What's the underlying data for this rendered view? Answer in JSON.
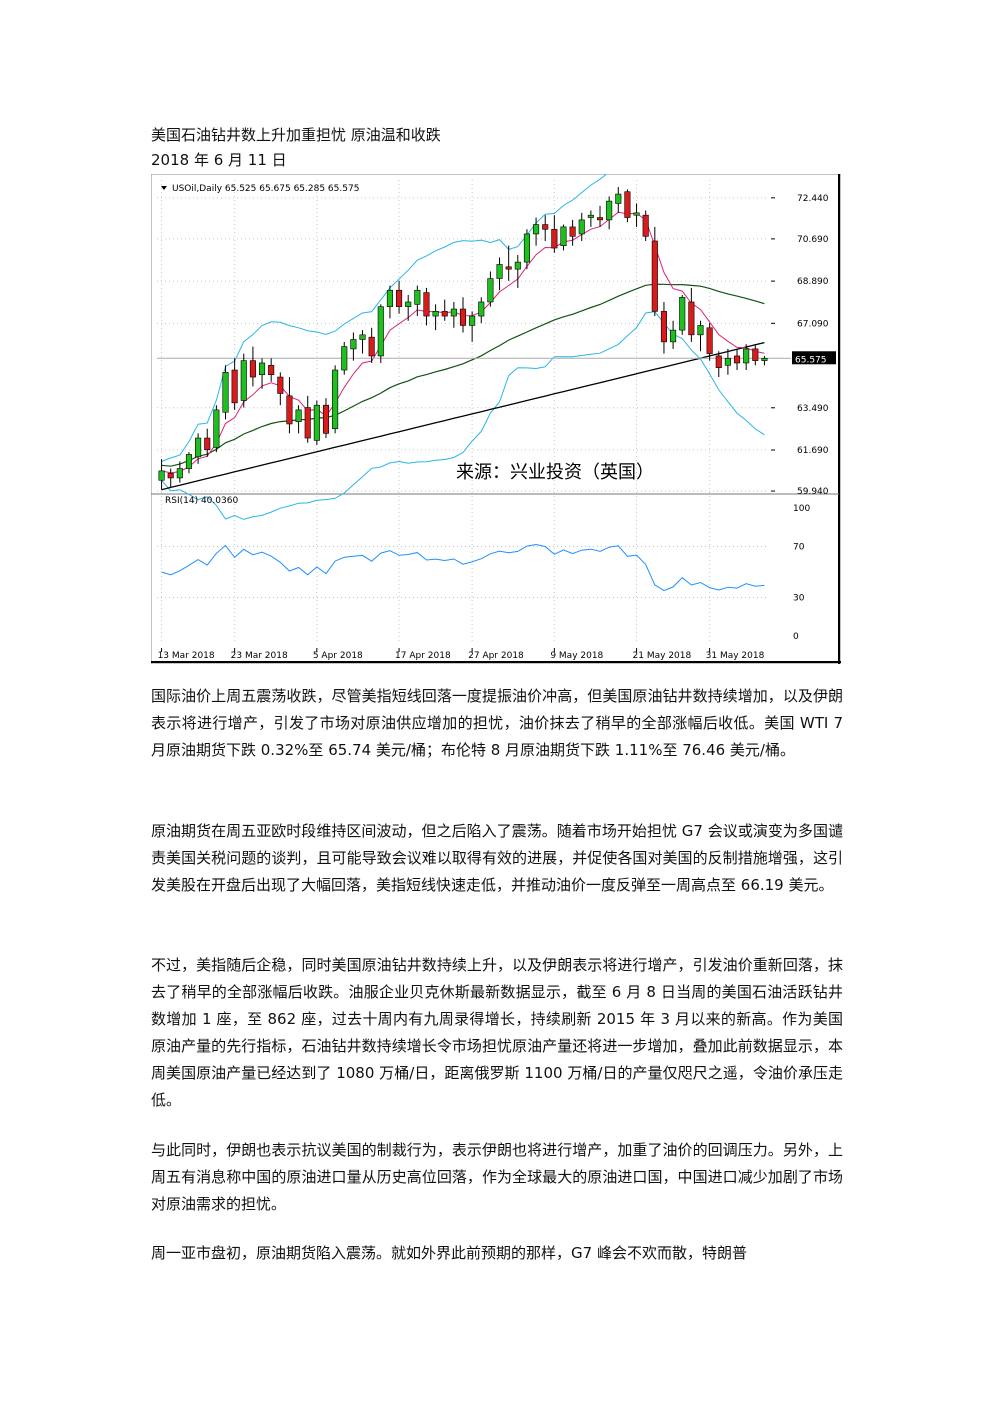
{
  "document": {
    "title": "美国石油钻井数上升加重担忧  原油温和收跌",
    "date": "2018 年 6 月 11 日"
  },
  "chart_data": {
    "type": "candlestick",
    "header": "USOil,Daily  65.525 65.675 65.285 65.575",
    "current_price_label": "65.575",
    "price_ticks": [
      "72.440",
      "70.690",
      "68.890",
      "67.090",
      "63.490",
      "61.690",
      "59.940"
    ],
    "price_tick_values": [
      72.44,
      70.69,
      68.89,
      67.09,
      63.49,
      61.69,
      59.94
    ],
    "price_range": [
      59.9,
      73.2
    ],
    "source_label": "来源：兴业投资（英国）",
    "rsi_label": "RSI(14) 40.0360",
    "rsi_ticks": [
      "100",
      "70",
      "30",
      "0"
    ],
    "rsi_tick_values": [
      100,
      70,
      30,
      0
    ],
    "x_labels": [
      "13 Mar 2018",
      "23 Mar 2018",
      "5 Apr 2018",
      "17 Apr 2018",
      "27 Apr 2018",
      "9 May 2018",
      "21 May 2018",
      "31 May 2018"
    ],
    "x_label_index": [
      0,
      8,
      17,
      26,
      34,
      43,
      52,
      60
    ],
    "candles": [
      [
        60.4,
        61.3,
        60.0,
        60.8
      ],
      [
        60.7,
        60.9,
        60.1,
        60.5
      ],
      [
        60.5,
        61.2,
        60.3,
        60.9
      ],
      [
        60.9,
        61.6,
        60.7,
        61.5
      ],
      [
        61.4,
        62.4,
        61.1,
        62.2
      ],
      [
        62.2,
        62.6,
        61.4,
        61.7
      ],
      [
        61.8,
        63.6,
        61.6,
        63.4
      ],
      [
        63.3,
        65.3,
        63.0,
        65.0
      ],
      [
        65.1,
        65.6,
        63.4,
        63.7
      ],
      [
        63.8,
        65.8,
        63.5,
        65.5
      ],
      [
        65.5,
        66.1,
        64.4,
        64.8
      ],
      [
        64.9,
        65.6,
        64.3,
        65.4
      ],
      [
        65.3,
        65.6,
        64.6,
        64.9
      ],
      [
        64.8,
        65.0,
        63.6,
        64.1
      ],
      [
        64.0,
        64.8,
        62.4,
        62.8
      ],
      [
        62.9,
        63.6,
        62.4,
        63.4
      ],
      [
        63.5,
        64.0,
        62.0,
        62.2
      ],
      [
        62.1,
        63.8,
        61.9,
        63.6
      ],
      [
        63.6,
        63.9,
        62.2,
        62.4
      ],
      [
        62.6,
        65.3,
        62.4,
        65.1
      ],
      [
        65.1,
        66.3,
        64.9,
        66.1
      ],
      [
        66.0,
        66.7,
        65.5,
        66.4
      ],
      [
        66.4,
        66.8,
        65.8,
        66.6
      ],
      [
        66.5,
        66.9,
        65.4,
        65.7
      ],
      [
        65.7,
        67.9,
        65.4,
        67.8
      ],
      [
        67.8,
        68.7,
        67.3,
        68.5
      ],
      [
        68.5,
        68.9,
        67.5,
        67.8
      ],
      [
        67.8,
        68.3,
        67.2,
        68.0
      ],
      [
        67.9,
        68.7,
        67.4,
        68.5
      ],
      [
        68.4,
        68.6,
        67.0,
        67.4
      ],
      [
        67.4,
        67.9,
        66.8,
        67.6
      ],
      [
        67.6,
        68.1,
        67.2,
        67.4
      ],
      [
        67.4,
        68.0,
        66.9,
        67.7
      ],
      [
        67.7,
        68.2,
        66.7,
        67.0
      ],
      [
        67.0,
        67.6,
        66.3,
        67.4
      ],
      [
        67.4,
        68.2,
        67.1,
        68.0
      ],
      [
        68.0,
        69.3,
        67.8,
        69.0
      ],
      [
        69.0,
        69.9,
        68.5,
        69.6
      ],
      [
        69.5,
        70.4,
        68.9,
        69.4
      ],
      [
        69.4,
        70.0,
        68.6,
        69.7
      ],
      [
        69.7,
        71.1,
        69.4,
        70.9
      ],
      [
        70.9,
        71.6,
        70.4,
        71.3
      ],
      [
        71.3,
        71.7,
        70.6,
        71.1
      ],
      [
        71.1,
        71.7,
        70.1,
        70.3
      ],
      [
        70.4,
        71.3,
        70.2,
        71.2
      ],
      [
        71.2,
        71.5,
        70.4,
        70.8
      ],
      [
        70.9,
        71.8,
        70.6,
        71.5
      ],
      [
        71.6,
        71.9,
        71.2,
        71.7
      ],
      [
        71.6,
        72.1,
        71.2,
        71.5
      ],
      [
        71.5,
        72.5,
        71.1,
        72.3
      ],
      [
        72.2,
        72.9,
        71.8,
        72.6
      ],
      [
        72.7,
        72.8,
        71.4,
        71.6
      ],
      [
        71.7,
        72.2,
        71.2,
        71.8
      ],
      [
        71.7,
        71.9,
        70.6,
        70.8
      ],
      [
        70.6,
        71.2,
        67.4,
        67.6
      ],
      [
        67.6,
        68.0,
        65.8,
        66.3
      ],
      [
        66.3,
        67.2,
        66.0,
        66.8
      ],
      [
        66.8,
        68.3,
        66.6,
        68.2
      ],
      [
        68.0,
        68.6,
        66.3,
        66.6
      ],
      [
        66.6,
        67.2,
        65.9,
        67.0
      ],
      [
        66.9,
        67.1,
        65.5,
        65.8
      ],
      [
        65.7,
        65.9,
        64.8,
        65.2
      ],
      [
        65.3,
        66.0,
        64.9,
        65.6
      ],
      [
        65.7,
        66.0,
        65.1,
        65.4
      ],
      [
        65.4,
        66.2,
        65.1,
        66.0
      ],
      [
        66.0,
        66.2,
        65.3,
        65.5
      ],
      [
        65.5,
        65.7,
        65.3,
        65.6
      ]
    ]
  },
  "paragraphs": [
    "国际油价上周五震荡收跌，尽管美指短线回落一度提振油价冲高，但美国原油钻井数持续增加，以及伊朗表示将进行增产，引发了市场对原油供应增加的担忧，油价抹去了稍早的全部涨幅后收低。美国 WTI 7 月原油期货下跌 0.32%至 65.74 美元/桶；布伦特 8 月原油期货下跌 1.11%至 76.46 美元/桶。",
    "原油期货在周五亚欧时段维持区间波动，但之后陷入了震荡。随着市场开始担忧 G7 会议或演变为多国谴责美国关税问题的谈判，且可能导致会议难以取得有效的进展，并促使各国对美国的反制措施增强，这引发美股在开盘后出现了大幅回落，美指短线快速走低，并推动油价一度反弹至一周高点至 66.19 美元。",
    "不过，美指随后企稳，同时美国原油钻井数持续上升，以及伊朗表示将进行增产，引发油价重新回落，抹去了稍早的全部涨幅后收跌。油服企业贝克休斯最新数据显示，截至 6 月 8 日当周的美国石油活跃钻井数增加 1 座，至 862 座，过去十周内有九周录得增长，持续刷新 2015 年 3 月以来的新高。作为美国原油产量的先行指标，石油钻井数持续增长令市场担忧原油产量还将进一步增加，叠加此前数据显示，本周美国原油产量已经达到了 1080 万桶/日，距离俄罗斯 1100 万桶/日的产量仅咫尺之遥，令油价承压走低。",
    "与此同时，伊朗也表示抗议美国的制裁行为，表示伊朗也将进行增产，加重了油价的回调压力。另外，上周五有消息称中国的原油进口量从历史高位回落，作为全球最大的原油进口国，中国进口减少加剧了市场对原油需求的担忧。",
    "周一亚市盘初，原油期货陷入震荡。就如外界此前预期的那样，G7 峰会不欢而散，特朗普"
  ]
}
